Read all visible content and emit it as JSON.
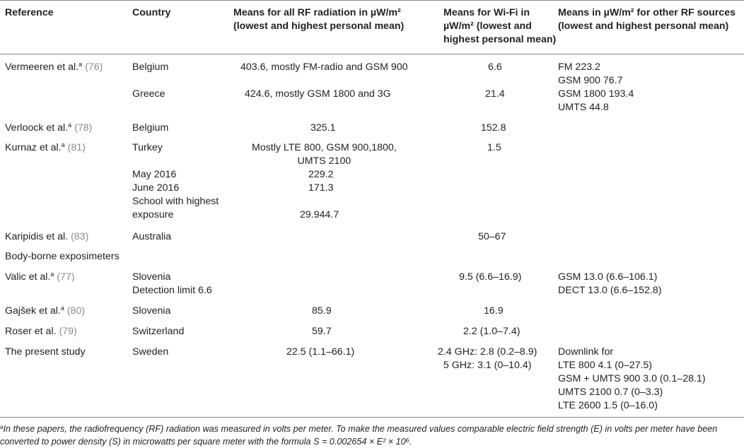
{
  "headers": {
    "reference": "Reference",
    "country": "Country",
    "all_rf": [
      "Means for all RF radiation in µW/m²",
      "(lowest and highest personal mean)"
    ],
    "wifi": [
      "Means for Wi-Fi in",
      "µW/m² (lowest and",
      "highest personal mean)"
    ],
    "other": [
      "Means in µW/m² for other RF sources",
      "(lowest and highest personal mean)"
    ]
  },
  "rows": {
    "vermeeren": {
      "ref": "Vermeeren et al.",
      "sup": "a",
      "cite": "(76)",
      "country1": "Belgium",
      "all1": "403.6, mostly FM-radio and GSM 900",
      "wifi1": "6.6",
      "country2": "Greece",
      "all2": "424.6, mostly GSM 1800 and 3G",
      "wifi2": "21.4",
      "other": [
        "FM 223.2",
        "GSM 900 76.7",
        "GSM 1800 193.4",
        "UMTS 44.8"
      ]
    },
    "verloock": {
      "ref": "Verloock et al.",
      "sup": "a",
      "cite": "(78)",
      "country": "Belgium",
      "all": "325.1",
      "wifi": "152.8"
    },
    "kurnaz": {
      "ref": "Kurnaz et al.",
      "sup": "a",
      "cite": "(81)",
      "country": "Turkey",
      "all": [
        "Mostly LTE 800, GSM 900,1800,",
        "UMTS 2100"
      ],
      "wifi": "1.5",
      "sub1_label": "May 2016",
      "sub1_val": "229.2",
      "sub2_label": "June 2016",
      "sub2_val": "171.3",
      "sub3_label": [
        "School with highest",
        "exposure"
      ],
      "sub3_val": "29.944.7"
    },
    "karipidis": {
      "ref": "Karipidis et al.",
      "cite": "(83)",
      "country": "Australia",
      "wifi": "50–67"
    },
    "body_borne": "Body-borne exposimeters",
    "valic": {
      "ref": "Valic et al.",
      "sup": "a",
      "cite": "(77)",
      "country": [
        "Slovenia",
        "Detection limit 6.6"
      ],
      "wifi": "9.5 (6.6–16.9)",
      "other": [
        "GSM 13.0 (6.6–106.1)",
        "DECT 13.0 (6.6–152.8)"
      ]
    },
    "gajsek": {
      "ref": "Gajšek et al.",
      "sup": "a",
      "cite": "(80)",
      "country": "Slovenia",
      "all": "85.9",
      "wifi": "16.9"
    },
    "roser": {
      "ref": "Roser et al.",
      "cite": "(79)",
      "country": "Switzerland",
      "all": "59.7",
      "wifi": "2.2 (1.0–7.4)"
    },
    "present": {
      "ref": "The present study",
      "country": "Sweden",
      "all": "22.5 (1.1–66.1)",
      "wifi": [
        "2.4 GHz: 2.8 (0.2–8.9)",
        "5 GHz: 3.1 (0–10.4)"
      ],
      "other": [
        "Downlink for",
        "LTE 800 4.1 (0–27.5)",
        "GSM + UMTS 900 3.0 (0.1–28.1)",
        "UMTS 2100 0.7 (0–3.3)",
        "LTE 2600 1.5 (0–16.0)"
      ]
    }
  },
  "footnote": {
    "sup": "a",
    "line1": "In these papers, the radiofrequency (RF) radiation was measured in volts per meter. To make the measured values comparable electric field strength (E) in volts per meter have been",
    "line2": "converted to power density (S) in microwatts per square meter with the formula S = 0.002654 × E² × 10⁶."
  }
}
